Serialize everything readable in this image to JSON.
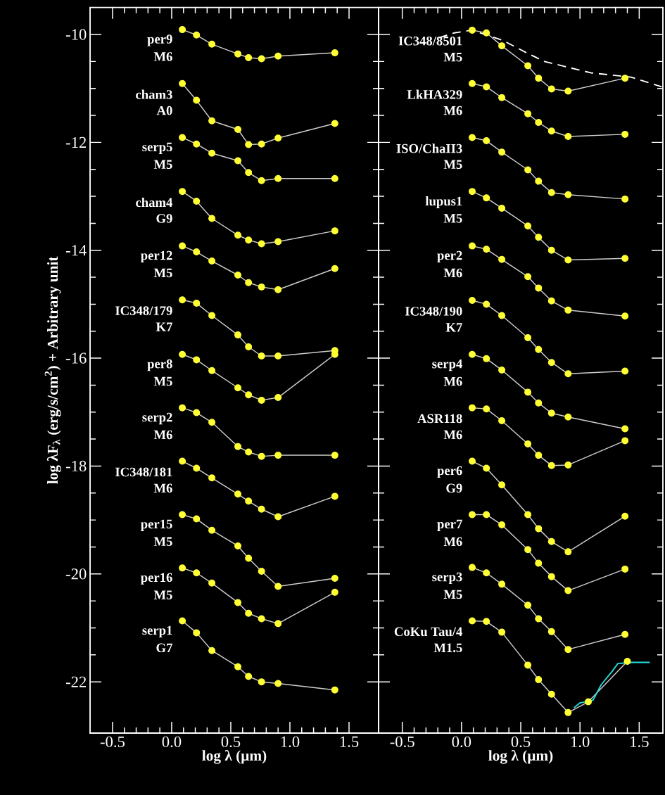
{
  "chart_data": [
    {
      "type": "line",
      "xlabel": "log λ (μm)",
      "ylabel": "log λF$_{λ}$ (erg/s/cm$^{2}$) + Arbitrary unit",
      "x": [
        0.09,
        0.21,
        0.34,
        0.56,
        0.65,
        0.76,
        0.9,
        1.38
      ],
      "xlim": [
        -0.69,
        1.75
      ],
      "ylim": [
        -22.95,
        -9.5
      ],
      "xticks": [
        {
          "value": -0.5,
          "label": "-0.5"
        },
        {
          "value": 0,
          "label": "0.0"
        },
        {
          "value": 0.5,
          "label": "0.5"
        },
        {
          "value": 1,
          "label": "1.0"
        },
        {
          "value": 1.5,
          "label": "1.5"
        }
      ],
      "yticks": [
        -22,
        -20,
        -18,
        -16,
        -14,
        -12,
        -10
      ],
      "marker": "circle",
      "series": [
        {
          "name": "per9",
          "color": "#ffff33",
          "values": [
            -9.91,
            -10.01,
            -10.18,
            -10.36,
            -10.43,
            -10.45,
            -10.4,
            -10.34
          ]
        },
        {
          "name": "cham3",
          "color": "#ffff33",
          "values": [
            -10.91,
            -11.22,
            -11.6,
            -11.76,
            -12.04,
            -12.03,
            -11.92,
            -11.65
          ]
        },
        {
          "name": "serp5",
          "color": "#ffff33",
          "values": [
            -11.91,
            -12.03,
            -12.2,
            -12.34,
            -12.56,
            -12.71,
            -12.67,
            -12.67
          ]
        },
        {
          "name": "cham4",
          "color": "#ffff33",
          "values": [
            -12.91,
            -13.09,
            -13.41,
            -13.72,
            -13.81,
            -13.88,
            -13.84,
            -13.64
          ]
        },
        {
          "name": "per12",
          "color": "#ffff33",
          "values": [
            -13.92,
            -14.03,
            -14.2,
            -14.46,
            -14.6,
            -14.68,
            -14.73,
            -14.34
          ]
        },
        {
          "name": "IC348/179",
          "color": "#ffff33",
          "values": [
            -14.92,
            -14.98,
            -15.21,
            -15.57,
            -15.79,
            -15.96,
            -15.96,
            -15.86
          ]
        },
        {
          "name": "per8",
          "color": "#ffff33",
          "values": [
            -15.93,
            -16.03,
            -16.23,
            -16.55,
            -16.68,
            -16.78,
            -16.73,
            -15.93
          ]
        },
        {
          "name": "serp2",
          "color": "#ffff33",
          "values": [
            -16.92,
            -17.01,
            -17.19,
            -17.64,
            -17.74,
            -17.82,
            -17.8,
            -17.8
          ]
        },
        {
          "name": "IC348/181",
          "color": "#ffff33",
          "values": [
            -17.91,
            -18.04,
            -18.22,
            -18.52,
            -18.65,
            -18.8,
            -18.94,
            -18.56
          ]
        },
        {
          "name": "per15",
          "color": "#ffff33",
          "values": [
            -18.9,
            -18.98,
            -19.19,
            -19.48,
            -19.71,
            -19.95,
            -20.23,
            -20.08
          ]
        },
        {
          "name": "per16",
          "color": "#ffff33",
          "values": [
            -19.89,
            -19.98,
            -20.17,
            -20.53,
            -20.73,
            -20.83,
            -20.92,
            -20.34
          ]
        },
        {
          "name": "serp1",
          "color": "#ffff33",
          "values": [
            -20.87,
            -21.09,
            -21.42,
            -21.72,
            -21.9,
            -22.0,
            -22.03,
            -22.15
          ]
        }
      ],
      "annotations": [
        "M6",
        "A0",
        "M5",
        "G9",
        "M5",
        "K7",
        "M5",
        "M6",
        "M6",
        "M5",
        "M5",
        "G7"
      ]
    },
    {
      "type": "line",
      "xlabel": "log λ (μm)",
      "x": [
        0.09,
        0.21,
        0.34,
        0.56,
        0.65,
        0.76,
        0.9,
        1.38
      ],
      "xlim": [
        -0.7,
        1.7
      ],
      "ylim": [
        -22.95,
        -9.5
      ],
      "xticks": [
        {
          "value": -0.5,
          "label": "-0.5"
        },
        {
          "value": 0,
          "label": "0.0"
        },
        {
          "value": 0.5,
          "label": "0.5"
        },
        {
          "value": 1,
          "label": "1.0"
        },
        {
          "value": 1.5,
          "label": "1.5"
        }
      ],
      "yticks": [
        -22,
        -20,
        -18,
        -16,
        -14,
        -12,
        -10
      ],
      "tick_labels": "x",
      "marker": "circle",
      "series": [
        {
          "name": "IC348/8501",
          "color": "#ffff33",
          "values": [
            -9.92,
            -9.97,
            -10.21,
            -10.58,
            -10.81,
            -11.01,
            -11.05,
            -10.81
          ]
        },
        {
          "name": "LkHA329",
          "color": "#ffff33",
          "values": [
            -10.91,
            -10.97,
            -11.17,
            -11.47,
            -11.63,
            -11.79,
            -11.89,
            -11.85
          ]
        },
        {
          "name": "ISO/ChaII3",
          "color": "#ffff33",
          "values": [
            -11.91,
            -11.97,
            -12.18,
            -12.51,
            -12.72,
            -12.93,
            -12.97,
            -13.05
          ]
        },
        {
          "name": "lupus1",
          "color": "#ffff33",
          "values": [
            -12.91,
            -13.03,
            -13.22,
            -13.55,
            -13.76,
            -14.0,
            -14.18,
            -14.15
          ]
        },
        {
          "name": "per2",
          "color": "#ffff33",
          "values": [
            -13.92,
            -13.98,
            -14.17,
            -14.49,
            -14.7,
            -14.94,
            -15.11,
            -15.22
          ]
        },
        {
          "name": "IC348/190",
          "color": "#ffff33",
          "values": [
            -14.93,
            -15.0,
            -15.21,
            -15.62,
            -15.84,
            -16.08,
            -16.29,
            -16.24
          ]
        },
        {
          "name": "serp4",
          "color": "#ffff33",
          "values": [
            -15.93,
            -16.01,
            -16.22,
            -16.63,
            -16.83,
            -17.02,
            -17.09,
            -17.31
          ]
        },
        {
          "name": "ASR118",
          "color": "#ffff33",
          "values": [
            -16.92,
            -16.94,
            -17.16,
            -17.59,
            -17.8,
            -17.99,
            -17.98,
            -17.53
          ]
        },
        {
          "name": "per6",
          "color": "#ffff33",
          "values": [
            -17.91,
            -18.04,
            -18.35,
            -18.9,
            -19.16,
            -19.4,
            -19.59,
            -18.93
          ]
        },
        {
          "name": "per7",
          "color": "#ffff33",
          "values": [
            -18.9,
            -18.9,
            -19.09,
            -19.55,
            -19.8,
            -20.05,
            -20.31,
            -19.91
          ]
        },
        {
          "name": "serp3",
          "color": "#ffff33",
          "values": [
            -19.88,
            -19.98,
            -20.19,
            -20.58,
            -20.83,
            -21.07,
            -21.4,
            -21.12
          ]
        },
        {
          "name": "CoKu Tau/4",
          "color": "#ffff33",
          "x": [
            0.09,
            0.21,
            0.34,
            0.56,
            0.65,
            0.76,
            0.9,
            1.07,
            1.4
          ],
          "values": [
            -20.87,
            -20.88,
            -21.08,
            -21.69,
            -21.96,
            -22.23,
            -22.57,
            -22.37,
            -21.62
          ]
        },
        {
          "color": "#ffffff",
          "marker": "none",
          "line_style": "dashed",
          "x": [
            -0.19,
            -0.06,
            0.09,
            0.35,
            0.55,
            0.7,
            1.09,
            1.43,
            1.69
          ],
          "values": [
            -10.06,
            -9.97,
            -9.92,
            -10.11,
            -10.34,
            -10.5,
            -10.71,
            -10.79,
            -10.97
          ]
        },
        {
          "color": "#22dddd",
          "marker": "none",
          "x": [
            0.95,
            1.0,
            1.11,
            1.18,
            1.27,
            1.32,
            1.44,
            1.59
          ],
          "values": [
            -22.48,
            -22.39,
            -22.34,
            -22.05,
            -21.81,
            -21.66,
            -21.64,
            -21.64
          ]
        }
      ],
      "annotations": [
        "M5",
        "M6",
        "M5",
        "M5",
        "M6",
        "K7",
        "M6",
        "M6",
        "G9",
        "M6",
        "M5",
        "M1.5"
      ]
    }
  ]
}
